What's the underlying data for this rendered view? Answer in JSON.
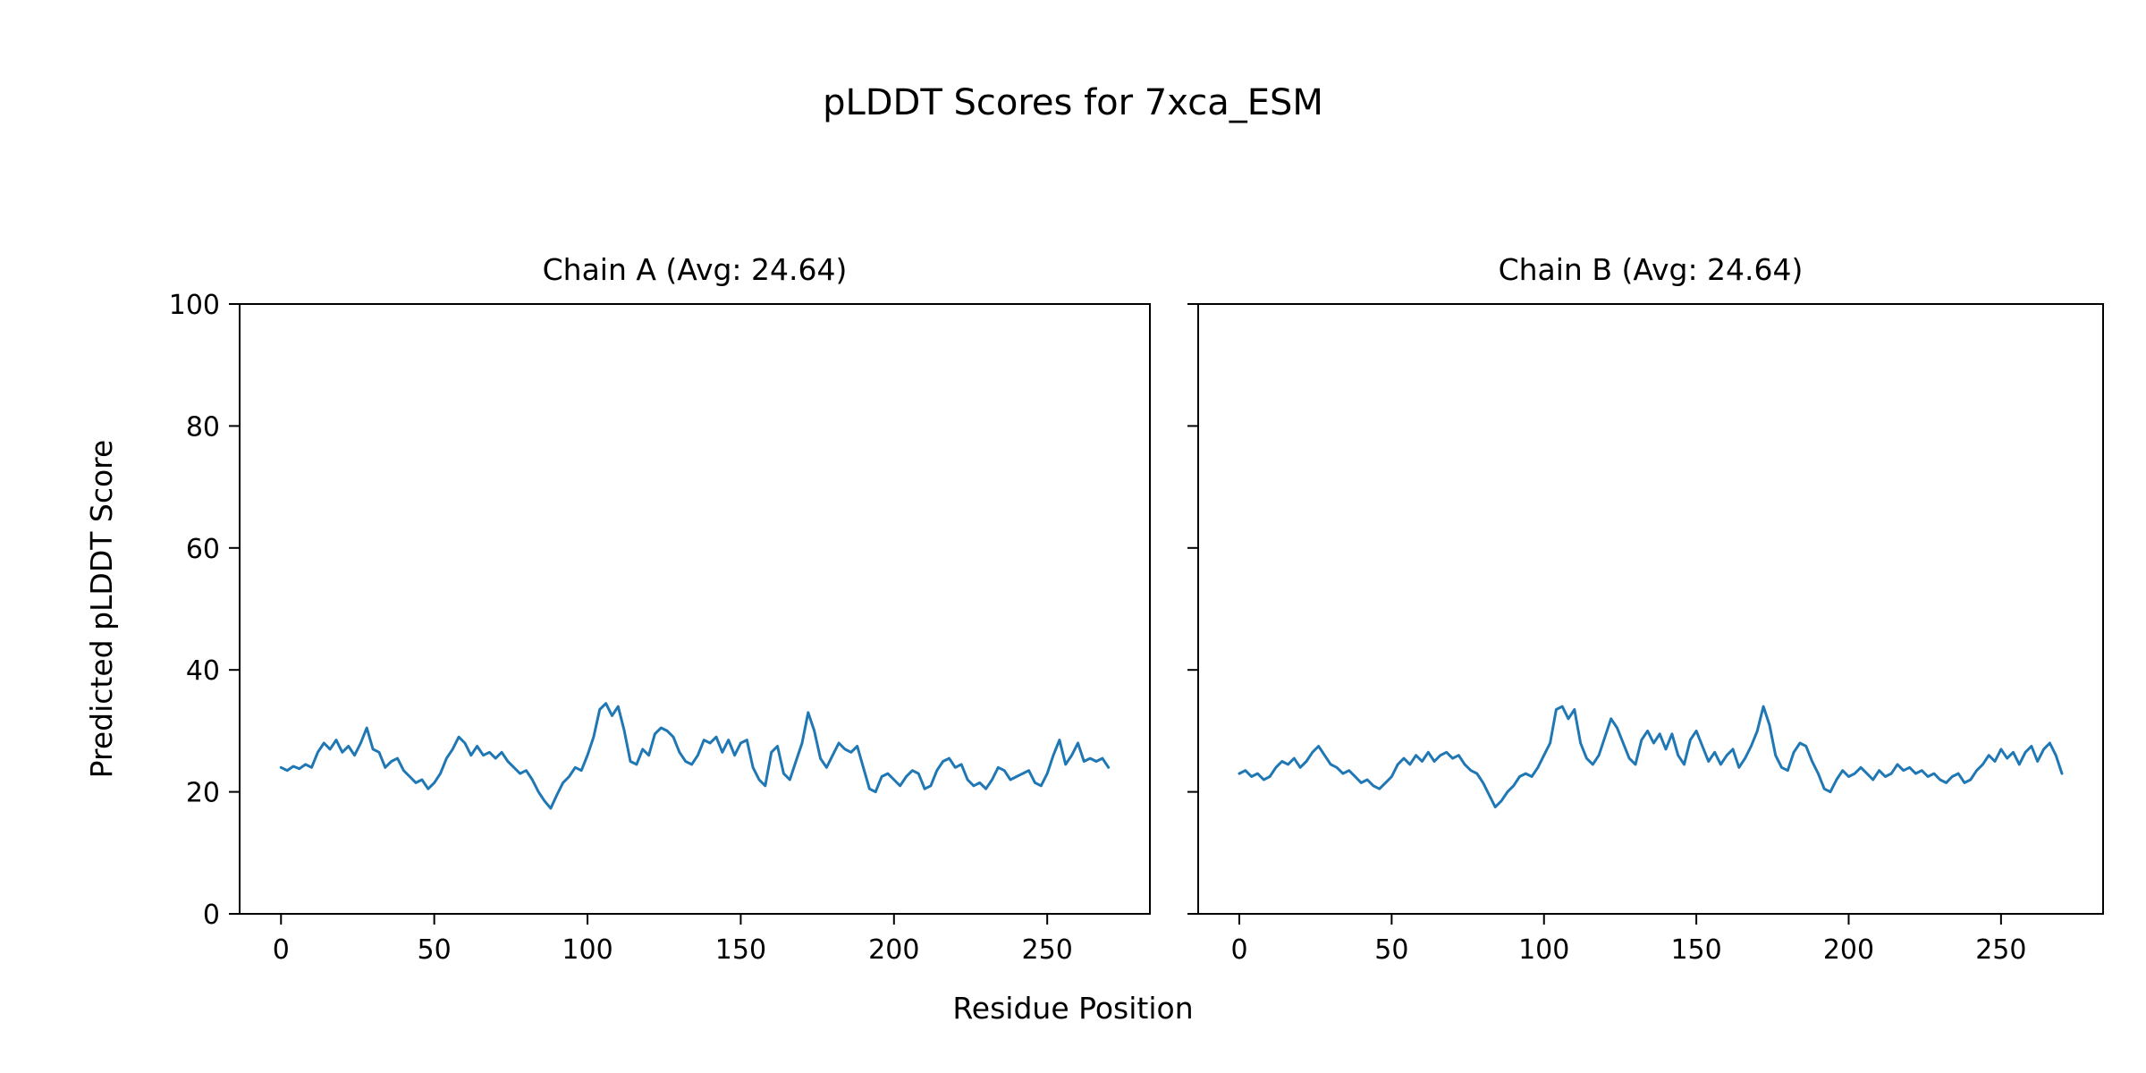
{
  "figure": {
    "title": "pLDDT Scores for 7xca_ESM",
    "xlabel": "Residue Position",
    "ylabel": "Predicted pLDDT Score"
  },
  "chart_data": [
    {
      "type": "line",
      "title": "Chain A (Avg: 24.64)",
      "chain": "A",
      "avg": 24.64,
      "xlim": [
        -13.5,
        283.5
      ],
      "ylim": [
        0,
        100
      ],
      "xticks": [
        0,
        50,
        100,
        150,
        200,
        250
      ],
      "yticks": [
        0,
        20,
        40,
        60,
        80,
        100
      ],
      "show_ytick_labels": true,
      "grid": false,
      "legend": "none",
      "line_color": "#1f77b4",
      "x_start": 0,
      "x_step": 2,
      "values": [
        24.0,
        23.5,
        24.2,
        23.8,
        24.5,
        24.0,
        26.5,
        28.0,
        27.0,
        28.5,
        26.5,
        27.5,
        26.0,
        28.0,
        30.5,
        27.0,
        26.5,
        24.0,
        25.0,
        25.5,
        23.5,
        22.5,
        21.5,
        22.0,
        20.5,
        21.5,
        23.0,
        25.5,
        27.0,
        29.0,
        28.0,
        26.0,
        27.5,
        26.0,
        26.5,
        25.5,
        26.5,
        25.0,
        24.0,
        23.0,
        23.5,
        22.0,
        20.0,
        18.5,
        17.3,
        19.5,
        21.5,
        22.5,
        24.0,
        23.5,
        26.0,
        29.0,
        33.5,
        34.5,
        32.5,
        34.0,
        30.0,
        25.0,
        24.5,
        27.0,
        26.0,
        29.5,
        30.5,
        30.0,
        29.0,
        26.5,
        25.0,
        24.5,
        26.0,
        28.5,
        28.0,
        29.0,
        26.5,
        28.5,
        26.0,
        28.0,
        28.5,
        24.0,
        22.0,
        21.0,
        26.5,
        27.5,
        23.0,
        22.0,
        25.0,
        28.0,
        33.0,
        30.0,
        25.5,
        24.0,
        26.0,
        28.0,
        27.0,
        26.5,
        27.5,
        24.0,
        20.5,
        20.0,
        22.5,
        23.0,
        22.0,
        21.0,
        22.5,
        23.5,
        23.0,
        20.5,
        21.0,
        23.5,
        25.0,
        25.5,
        24.0,
        24.5,
        22.0,
        21.0,
        21.5,
        20.5,
        22.0,
        24.0,
        23.5,
        22.0,
        22.5,
        23.0,
        23.5,
        21.5,
        21.0,
        23.0,
        26.0,
        28.5,
        24.5,
        26.0,
        28.0,
        25.0,
        25.5,
        25.0,
        25.5,
        24.0
      ]
    },
    {
      "type": "line",
      "title": "Chain B (Avg: 24.64)",
      "chain": "B",
      "avg": 24.64,
      "xlim": [
        -13.5,
        283.5
      ],
      "ylim": [
        0,
        100
      ],
      "xticks": [
        0,
        50,
        100,
        150,
        200,
        250
      ],
      "yticks": [
        0,
        20,
        40,
        60,
        80,
        100
      ],
      "show_ytick_labels": false,
      "grid": false,
      "legend": "none",
      "line_color": "#1f77b4",
      "x_start": 0,
      "x_step": 2,
      "values": [
        23.0,
        23.5,
        22.5,
        23.0,
        22.0,
        22.5,
        24.0,
        25.0,
        24.5,
        25.5,
        24.0,
        25.0,
        26.5,
        27.5,
        26.0,
        24.5,
        24.0,
        23.0,
        23.5,
        22.5,
        21.5,
        22.0,
        21.0,
        20.5,
        21.5,
        22.5,
        24.5,
        25.5,
        24.5,
        26.0,
        25.0,
        26.5,
        25.0,
        26.0,
        26.5,
        25.5,
        26.0,
        24.5,
        23.5,
        23.0,
        21.5,
        19.5,
        17.5,
        18.5,
        20.0,
        21.0,
        22.5,
        23.0,
        22.5,
        24.0,
        26.0,
        28.0,
        33.5,
        34.0,
        32.0,
        33.5,
        28.0,
        25.5,
        24.5,
        26.0,
        29.0,
        32.0,
        30.5,
        28.0,
        25.5,
        24.5,
        28.5,
        30.0,
        28.0,
        29.5,
        27.0,
        29.5,
        26.0,
        24.5,
        28.5,
        30.0,
        27.5,
        25.0,
        26.5,
        24.5,
        26.0,
        27.0,
        24.0,
        25.5,
        27.5,
        30.0,
        34.0,
        31.0,
        26.0,
        24.0,
        23.5,
        26.5,
        28.0,
        27.5,
        25.0,
        23.0,
        20.5,
        20.0,
        22.0,
        23.5,
        22.5,
        23.0,
        24.0,
        23.0,
        22.0,
        23.5,
        22.5,
        23.0,
        24.5,
        23.5,
        24.0,
        23.0,
        23.5,
        22.5,
        23.0,
        22.0,
        21.5,
        22.5,
        23.0,
        21.5,
        22.0,
        23.5,
        24.5,
        26.0,
        25.0,
        27.0,
        25.5,
        26.5,
        24.5,
        26.5,
        27.5,
        25.0,
        27.0,
        28.0,
        26.0,
        23.0
      ]
    }
  ]
}
